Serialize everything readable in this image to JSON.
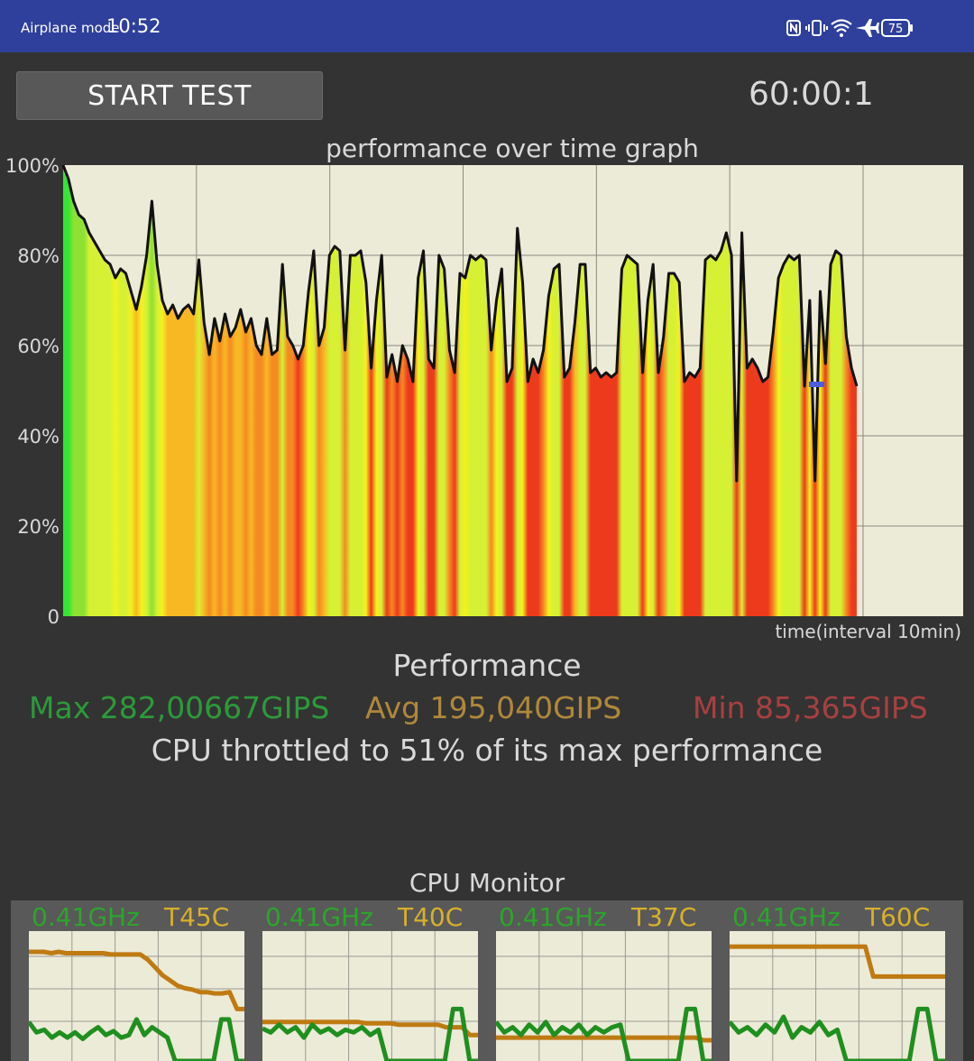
{
  "status_bar": {
    "mode": "Airplane mode",
    "time": "10:52",
    "battery": "75",
    "icons": [
      "nfc-icon",
      "vibrate-icon",
      "wifi-icon",
      "airplane-icon",
      "battery-icon"
    ]
  },
  "controls": {
    "start_label": "START TEST",
    "timer": "60:00:1"
  },
  "chart_data": {
    "type": "area",
    "title": "performance over time graph",
    "xlabel": "time(interval 10min)",
    "ylabel": "",
    "ylim": [
      0,
      100
    ],
    "y_ticks": [
      "0",
      "20%",
      "40%",
      "60%",
      "80%",
      "100%"
    ],
    "x_interval_min": 10,
    "x_total_min": 60,
    "grid": true,
    "series": [
      {
        "values": [
          100,
          97,
          92,
          89,
          88,
          85,
          83,
          81,
          79,
          78,
          75,
          77,
          76,
          72,
          68,
          73,
          80,
          92,
          78,
          70,
          67,
          69,
          66,
          68,
          69,
          67,
          79,
          65,
          58,
          66,
          61,
          67,
          62,
          64,
          68,
          63,
          66,
          60,
          58,
          66,
          58,
          59,
          78,
          62,
          60,
          57,
          60,
          72,
          81,
          60,
          64,
          80,
          82,
          81,
          59,
          80,
          80,
          81,
          74,
          55,
          70,
          80,
          53,
          58,
          52,
          60,
          57,
          52,
          75,
          81,
          57,
          55,
          80,
          77,
          59,
          54,
          76,
          75,
          80,
          79,
          80,
          79,
          59,
          70,
          77,
          52,
          55,
          86,
          74,
          52,
          57,
          54,
          59,
          71,
          77,
          78,
          53,
          55,
          65,
          78,
          78,
          54,
          55,
          53,
          54,
          53,
          54,
          77,
          80,
          79,
          78,
          54,
          70,
          78,
          54,
          62,
          76,
          76,
          74,
          52,
          54,
          53,
          55,
          79,
          80,
          79,
          81,
          85,
          80,
          30,
          85,
          55,
          57,
          55,
          52,
          53,
          63,
          75,
          78,
          80,
          79,
          80,
          51,
          70,
          30,
          72,
          56,
          78,
          81,
          80,
          62,
          55,
          51
        ]
      }
    ],
    "stats_percent": {
      "max": 100,
      "min": 30,
      "throttled": 51
    }
  },
  "performance": {
    "heading": "Performance",
    "max": "Max 282,00667GIPS",
    "avg": "Avg 195,040GIPS",
    "min": "Min 85,365GIPS",
    "throttle_text": "CPU throttled to 51% of its max performance"
  },
  "cpu_monitor": {
    "title": "CPU Monitor",
    "colors": {
      "freq": "#2ca52c",
      "temp": "#d8b02a",
      "temp_line": "#bf7a12",
      "freq_line": "#1f8f1f"
    },
    "cores": [
      {
        "freq": "0.41GHz",
        "temp": "T45C",
        "temp_trend": [
          84,
          84,
          84,
          83,
          84,
          83,
          83,
          83,
          83,
          83,
          83,
          82,
          82,
          82,
          82,
          82,
          78,
          72,
          66,
          62,
          58,
          56,
          55,
          53,
          53,
          52,
          52,
          53,
          40,
          40
        ],
        "freq_trend": [
          30,
          22,
          24,
          18,
          22,
          18,
          22,
          17,
          22,
          26,
          20,
          23,
          18,
          20,
          32,
          20,
          26,
          22,
          18,
          0,
          0,
          0,
          0,
          0,
          0,
          32,
          32,
          0,
          0
        ]
      },
      {
        "freq": "0.41GHz",
        "temp": "T40C",
        "temp_trend": [
          30,
          30,
          30,
          30,
          30,
          30,
          30,
          30,
          30,
          30,
          30,
          30,
          30,
          29,
          29,
          29,
          29,
          28,
          28,
          28,
          28,
          28,
          28,
          26,
          26,
          26,
          20,
          20
        ],
        "freq_trend": [
          25,
          22,
          28,
          22,
          26,
          18,
          28,
          22,
          25,
          20,
          24,
          22,
          26,
          20,
          24,
          0,
          0,
          0,
          0,
          0,
          0,
          0,
          0,
          40,
          40,
          0,
          0
        ]
      },
      {
        "freq": "0.41GHz",
        "temp": "T37C",
        "temp_trend": [
          18,
          18,
          18,
          18,
          18,
          18,
          18,
          18,
          18,
          18,
          18,
          18,
          18,
          18,
          18,
          18,
          18,
          18,
          18,
          18,
          18,
          18,
          18,
          18,
          18,
          18,
          16,
          16
        ],
        "freq_trend": [
          30,
          22,
          26,
          20,
          28,
          22,
          30,
          20,
          26,
          22,
          28,
          20,
          26,
          22,
          26,
          28,
          0,
          0,
          0,
          0,
          0,
          0,
          0,
          40,
          40,
          0,
          0
        ]
      },
      {
        "freq": "0.41GHz",
        "temp": "T60C",
        "temp_trend": [
          88,
          88,
          88,
          88,
          88,
          88,
          88,
          88,
          88,
          88,
          88,
          88,
          88,
          88,
          88,
          88,
          88,
          88,
          65,
          65,
          65,
          65,
          65,
          65,
          65,
          65,
          65,
          65
        ],
        "freq_trend": [
          30,
          22,
          26,
          20,
          28,
          22,
          34,
          18,
          26,
          22,
          30,
          20,
          24,
          0,
          0,
          0,
          0,
          0,
          0,
          0,
          0,
          40,
          40,
          0,
          0
        ]
      }
    ]
  }
}
